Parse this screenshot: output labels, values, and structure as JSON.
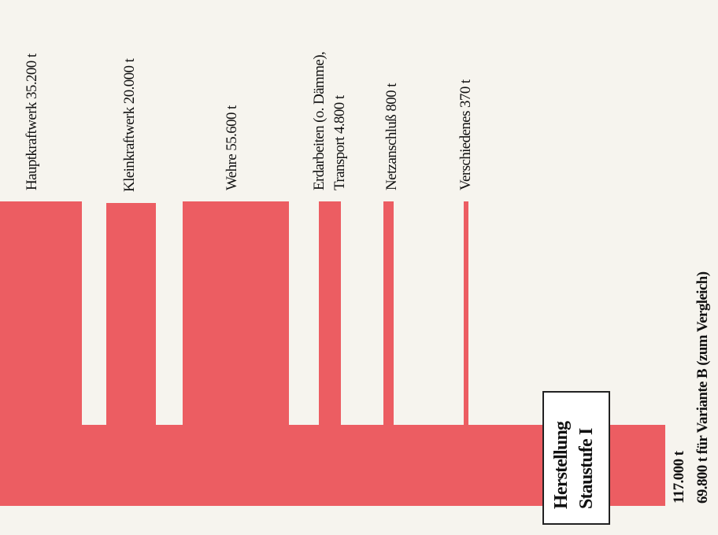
{
  "colors": {
    "flow": "#ec5d62",
    "background": "#f6f4ee",
    "text": "#111111"
  },
  "components": [
    {
      "label": "Hauptkraftwerk 35.200 t",
      "value": 35200
    },
    {
      "label": "Kleinkraftwerk  20.000 t",
      "value": 20000
    },
    {
      "label": "Wehre 55.600 t",
      "value": 55600
    },
    {
      "label_lines": [
        "Erdarbeiten (o. Dämme),",
        "Transport   4.800 t"
      ],
      "value": 4800
    },
    {
      "label": "Netzanschluß  800 t",
      "value": 800
    },
    {
      "label": "Verschiedenes 370 t",
      "value": 370
    }
  ],
  "total": {
    "box_lines": [
      "Herstellung",
      "Staustufe I"
    ],
    "value_label": "117.000 t",
    "value": 117000
  },
  "comparison": {
    "label": "69.800  t   für Variante B  (zum Vergleich)",
    "value": 69800
  }
}
